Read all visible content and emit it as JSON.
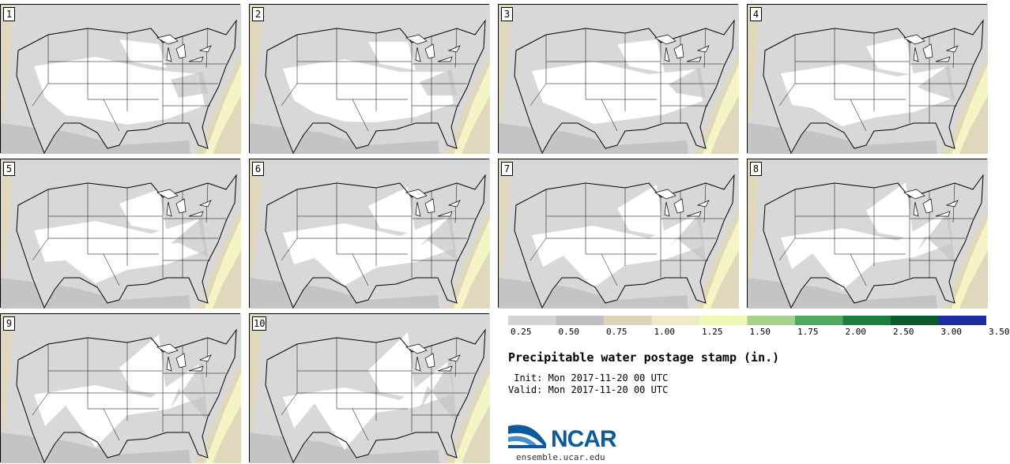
{
  "panels": [
    {
      "label": "1"
    },
    {
      "label": "2"
    },
    {
      "label": "3"
    },
    {
      "label": "4"
    },
    {
      "label": "5"
    },
    {
      "label": "6"
    },
    {
      "label": "7"
    },
    {
      "label": "8"
    },
    {
      "label": "9"
    },
    {
      "label": "10"
    }
  ],
  "legend": {
    "colors": [
      "#d4d4d4",
      "#bfbfbf",
      "#dcd3b9",
      "#eeeac6",
      "#f0f7b4",
      "#a9d18e",
      "#52a861",
      "#1a7f3c",
      "#0b5a2a",
      "#1b2fa3"
    ],
    "labels": [
      "0.25",
      "0.50",
      "0.75",
      "1.00",
      "1.25",
      "1.50",
      "1.75",
      "2.00",
      "2.50",
      "3.00",
      "3.50"
    ]
  },
  "title": "Precipitable water postage stamp (in.)",
  "init_line": " Init: Mon 2017-11-20 00 UTC",
  "valid_line": "Valid: Mon 2017-11-20 00 UTC",
  "logo": {
    "text": "NCAR",
    "color": "#0a5a9c"
  },
  "url": "ensemble.ucar.edu",
  "map_colors": {
    "land": "#ffffff",
    "light": "#d8d8d8",
    "mid": "#c4c4c4",
    "tan": "#e0d8bc",
    "yellow": "#f3f5c4"
  }
}
